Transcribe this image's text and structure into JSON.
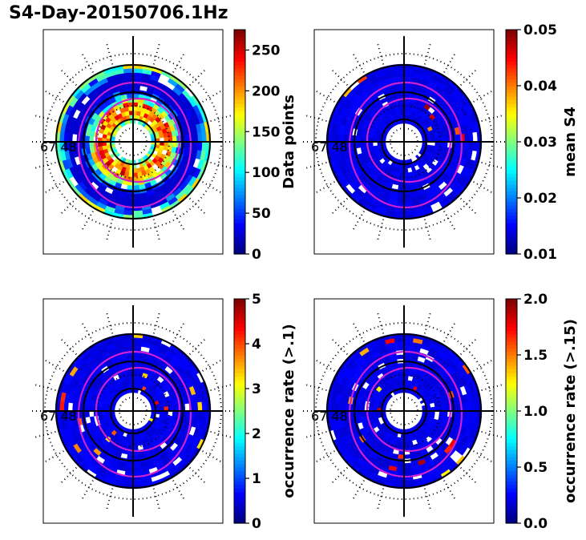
{
  "title": "S4-Day-20150706.1Hz",
  "chart_data": [
    {
      "type": "heatmap",
      "panel": "top-left",
      "projection": "polar",
      "colorbar_label": "Data points",
      "colormap": "jet",
      "vmin": 0,
      "vmax": 275,
      "colorbar_ticks": [
        "0",
        "50",
        "100",
        "150",
        "200",
        "250"
      ],
      "colorbar_values": [
        0,
        50,
        100,
        150,
        200,
        250
      ],
      "field_values": [
        75,
        100,
        140,
        160,
        200,
        250
      ],
      "marker": "67 48"
    },
    {
      "type": "heatmap",
      "panel": "top-right",
      "projection": "polar",
      "colorbar_label": "mean S4",
      "colormap": "jet",
      "vmin": 0.01,
      "vmax": 0.05,
      "colorbar_ticks": [
        "0.01",
        "0.02",
        "0.03",
        "0.04",
        "0.05"
      ],
      "colorbar_values": [
        0.01,
        0.02,
        0.03,
        0.04,
        0.05
      ],
      "field_values": [
        0.012,
        0.02,
        0.04
      ],
      "marker": "67 48"
    },
    {
      "type": "heatmap",
      "panel": "bottom-left",
      "projection": "polar",
      "colorbar_label": "occurrence rate (>.1)",
      "colormap": "jet",
      "vmin": 0,
      "vmax": 5,
      "colorbar_ticks": [
        "0",
        "1",
        "2",
        "3",
        "4",
        "5"
      ],
      "colorbar_values": [
        0,
        1,
        2,
        3,
        4,
        5
      ],
      "field_values": [
        0.2,
        1.5,
        2.5,
        3.5,
        4.5
      ],
      "marker": "67 48"
    },
    {
      "type": "heatmap",
      "panel": "bottom-right",
      "projection": "polar",
      "colorbar_label": "occurrence rate (>.15)",
      "colormap": "jet",
      "vmin": 0,
      "vmax": 2,
      "colorbar_ticks": [
        "0.0",
        "0.5",
        "1.0",
        "1.5",
        "2.0"
      ],
      "colorbar_values": [
        0,
        0.5,
        1.0,
        1.5,
        2.0
      ],
      "field_values": [
        0.1,
        0.6,
        1.9
      ],
      "marker": "67 48"
    }
  ],
  "colors": {
    "contour": "#d020d0",
    "background": "#00008f",
    "gap": "#ffffff"
  }
}
